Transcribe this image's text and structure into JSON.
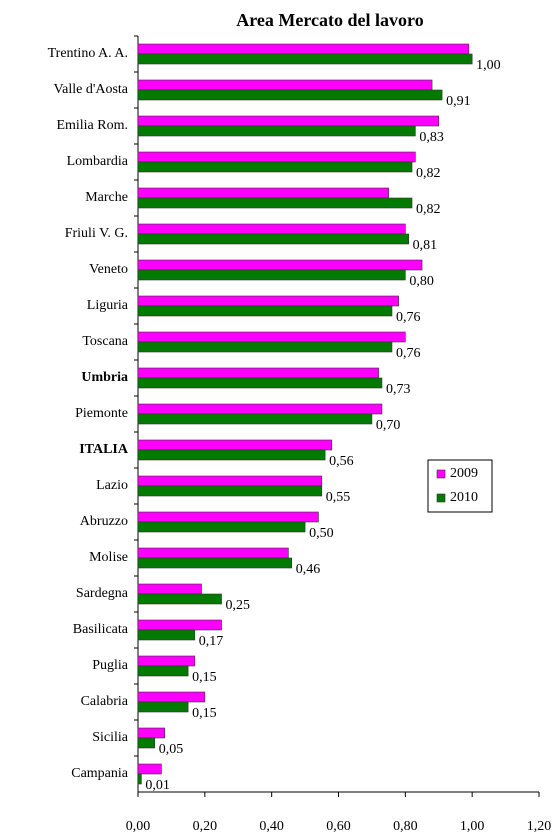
{
  "chart_data": {
    "type": "bar",
    "orientation": "horizontal",
    "title": "Area Mercato del lavoro",
    "categories": [
      "Trentino A. A.",
      "Valle d'Aosta",
      "Emilia Rom.",
      "Lombardia",
      "Marche",
      "Friuli V. G.",
      "Veneto",
      "Liguria",
      "Toscana",
      "Umbria",
      "Piemonte",
      "ITALIA",
      "Lazio",
      "Abruzzo",
      "Molise",
      "Sardegna",
      "Basilicata",
      "Puglia",
      "Calabria",
      "Sicilia",
      "Campania"
    ],
    "bold_categories": [
      9,
      11
    ],
    "series": [
      {
        "name": "2009",
        "color": "#ff00ff",
        "values": [
          0.99,
          0.88,
          0.9,
          0.83,
          0.75,
          0.8,
          0.85,
          0.78,
          0.8,
          0.72,
          0.73,
          0.58,
          0.55,
          0.54,
          0.45,
          0.19,
          0.25,
          0.17,
          0.2,
          0.08,
          0.07
        ]
      },
      {
        "name": "2010",
        "color": "#007a00",
        "values": [
          1.0,
          0.91,
          0.83,
          0.82,
          0.82,
          0.81,
          0.8,
          0.76,
          0.76,
          0.73,
          0.7,
          0.56,
          0.55,
          0.5,
          0.46,
          0.25,
          0.17,
          0.15,
          0.15,
          0.05,
          0.01
        ],
        "value_labels": [
          "1,00",
          "0,91",
          "0,83",
          "0,82",
          "0,82",
          "0,81",
          "0,80",
          "0,76",
          "0,76",
          "0,73",
          "0,70",
          "0,56",
          "0,55",
          "0,50",
          "0,46",
          "0,25",
          "0,17",
          "0,15",
          "0,15",
          "0,05",
          "0,01"
        ]
      }
    ],
    "xlim": [
      0,
      1.2
    ],
    "xticks": [
      {
        "value": 0,
        "label": "0,00"
      },
      {
        "value": 0.2,
        "label": "0,20"
      },
      {
        "value": 0.4,
        "label": "0,40"
      },
      {
        "value": 0.6,
        "label": "0,60"
      },
      {
        "value": 0.8,
        "label": "0,80"
      },
      {
        "value": 1.0,
        "label": "1,00"
      },
      {
        "value": 1.2,
        "label": "1,20"
      }
    ],
    "grid": false,
    "legend": "right"
  }
}
